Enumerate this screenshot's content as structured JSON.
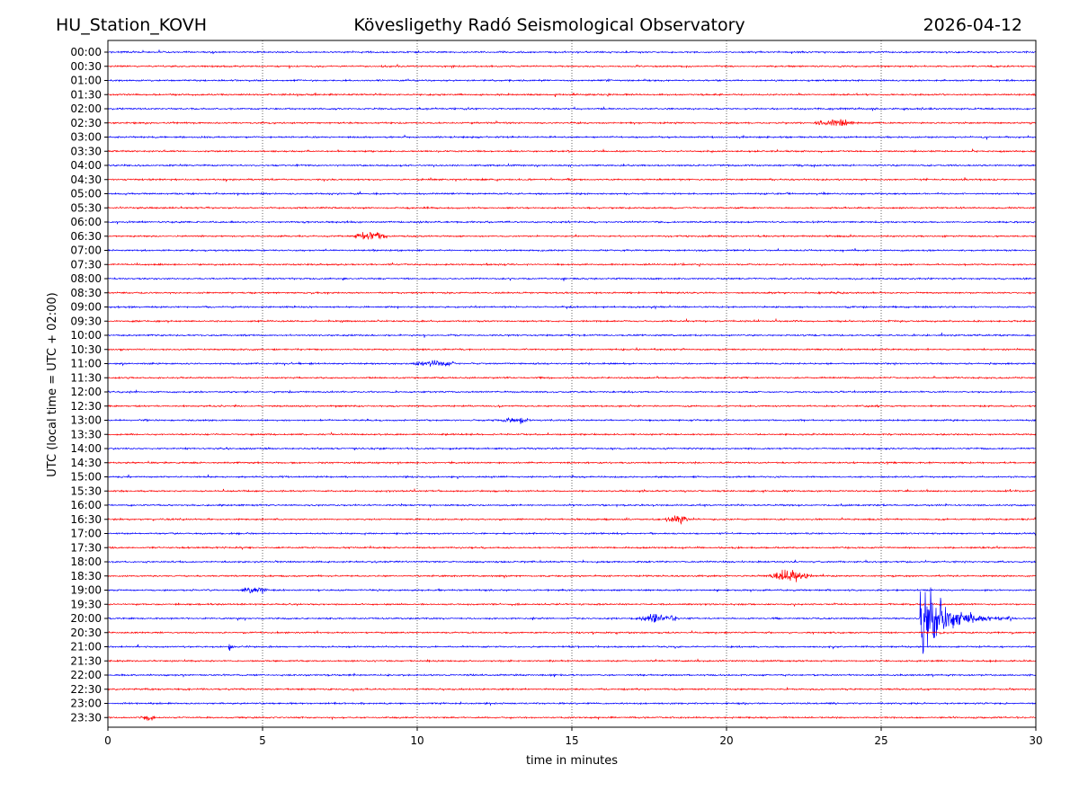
{
  "header": {
    "station": "HU_Station_KOVH",
    "observatory": "Kövesligethy Radó Seismological Observatory",
    "date": "2026-04-12"
  },
  "chart_data": {
    "type": "line",
    "title": "Kövesligethy Radó Seismological Observatory",
    "xlabel": "time in minutes",
    "ylabel": "UTC (local time = UTC + 02:00)",
    "xlim": [
      0,
      30
    ],
    "x_ticks": [
      0,
      5,
      10,
      15,
      20,
      25,
      30
    ],
    "grid": "vertical dotted at 5-minute ticks",
    "trace_colors": [
      "#0000ff",
      "#ff0000"
    ],
    "rows": [
      "00:00",
      "00:30",
      "01:00",
      "01:30",
      "02:00",
      "02:30",
      "03:00",
      "03:30",
      "04:00",
      "04:30",
      "05:00",
      "05:30",
      "06:00",
      "06:30",
      "07:00",
      "07:30",
      "08:00",
      "08:30",
      "09:00",
      "09:30",
      "10:00",
      "10:30",
      "11:00",
      "11:30",
      "12:00",
      "12:30",
      "13:00",
      "13:30",
      "14:00",
      "14:30",
      "15:00",
      "15:30",
      "16:00",
      "16:30",
      "17:00",
      "17:30",
      "18:00",
      "18:30",
      "19:00",
      "19:30",
      "20:00",
      "20:30",
      "21:00",
      "21:30",
      "22:00",
      "22:30",
      "23:00",
      "23:30"
    ],
    "events": [
      {
        "row": "02:30",
        "start_min": 22.8,
        "duration_min": 1.4,
        "peak": 3.2,
        "kind": "local"
      },
      {
        "row": "06:30",
        "start_min": 7.9,
        "duration_min": 1.2,
        "peak": 2.8,
        "kind": "local"
      },
      {
        "row": "11:00",
        "start_min": 9.8,
        "duration_min": 1.5,
        "peak": 1.6,
        "kind": "noise"
      },
      {
        "row": "13:00",
        "start_min": 12.7,
        "duration_min": 1.0,
        "peak": 1.6,
        "kind": "noise"
      },
      {
        "row": "16:30",
        "start_min": 18.0,
        "duration_min": 0.8,
        "peak": 3.0,
        "kind": "local"
      },
      {
        "row": "18:30",
        "start_min": 21.3,
        "duration_min": 1.5,
        "peak": 3.4,
        "kind": "local"
      },
      {
        "row": "19:00",
        "start_min": 4.3,
        "duration_min": 0.9,
        "peak": 2.4,
        "kind": "local"
      },
      {
        "row": "20:00",
        "start_min": 17.0,
        "duration_min": 1.5,
        "peak": 2.6,
        "kind": "local"
      },
      {
        "row": "20:00",
        "start_min": 26.25,
        "duration_min": 3.0,
        "peak": 33.0,
        "kind": "regional"
      },
      {
        "row": "21:00",
        "start_min": 3.9,
        "duration_min": 0.4,
        "peak": 9.0,
        "kind": "spike"
      },
      {
        "row": "23:30",
        "start_min": 1.0,
        "duration_min": 0.6,
        "peak": 2.0,
        "kind": "local"
      }
    ]
  }
}
